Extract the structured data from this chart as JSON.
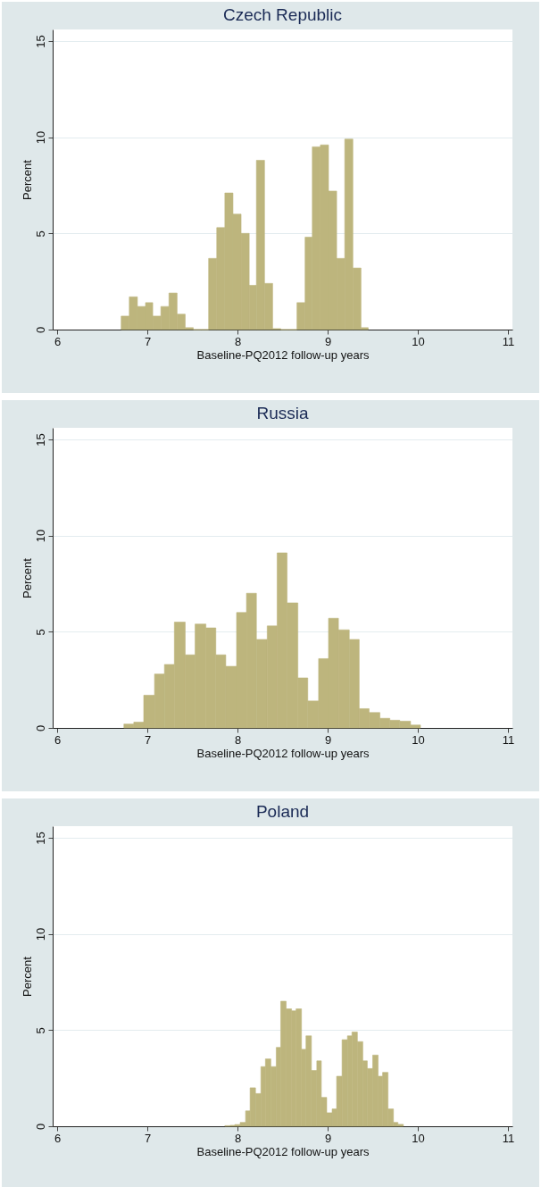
{
  "chart_data": [
    {
      "type": "histogram",
      "title": "Czech Republic",
      "xlabel": "Baseline-PQ2012 follow-up years",
      "ylabel": "Percent",
      "color": "#bdb57d",
      "bins": [
        6.71,
        6.8,
        6.89,
        6.98,
        7.06,
        7.15,
        7.24,
        7.33,
        7.42,
        7.51,
        7.6,
        7.68,
        7.77,
        7.86,
        7.95,
        8.04,
        8.13,
        8.21,
        8.3,
        8.39,
        8.48,
        8.57,
        8.66,
        8.75,
        8.83,
        8.92,
        9.01,
        9.1,
        9.19,
        9.28,
        9.37,
        9.45
      ],
      "values": [
        0.7,
        1.7,
        1.2,
        1.4,
        0.7,
        1.2,
        1.9,
        0.8,
        0.1,
        0,
        0,
        3.7,
        5.3,
        7.1,
        6.0,
        5.0,
        2.3,
        8.8,
        2.4,
        0.05,
        0,
        0,
        1.4,
        4.8,
        9.5,
        9.6,
        7.2,
        3.7,
        9.9,
        3.2,
        0.1
      ],
      "xlim": [
        5.95,
        11.05
      ],
      "xticks": [
        6,
        7,
        8,
        9,
        10,
        11
      ],
      "ylim": [
        0,
        15.6
      ],
      "yticks": [
        0,
        5,
        10,
        15
      ],
      "grid": "y"
    },
    {
      "type": "histogram",
      "title": "Russia",
      "xlabel": "Baseline-PQ2012 follow-up years",
      "ylabel": "Percent",
      "color": "#bdb57d",
      "bins": [
        6.74,
        6.85,
        6.96,
        7.08,
        7.19,
        7.3,
        7.42,
        7.53,
        7.65,
        7.76,
        7.87,
        7.99,
        8.1,
        8.21,
        8.33,
        8.44,
        8.55,
        8.67,
        8.78,
        8.9,
        9.01,
        9.12,
        9.24,
        9.35,
        9.46,
        9.58,
        9.69,
        9.8,
        9.92,
        10.03
      ],
      "values": [
        0.2,
        0.3,
        1.7,
        2.8,
        3.3,
        5.5,
        3.8,
        5.4,
        5.2,
        3.8,
        3.2,
        6.0,
        7.0,
        4.6,
        5.3,
        9.1,
        6.5,
        2.6,
        1.4,
        3.6,
        5.7,
        5.1,
        4.6,
        1.0,
        0.8,
        0.5,
        0.4,
        0.35,
        0.15
      ],
      "xlim": [
        5.95,
        11.05
      ],
      "xticks": [
        6,
        7,
        8,
        9,
        10,
        11
      ],
      "ylim": [
        0,
        15.6
      ],
      "yticks": [
        0,
        5,
        10,
        15
      ],
      "grid": "y"
    },
    {
      "type": "histogram",
      "title": "Poland",
      "xlabel": "Baseline-PQ2012 follow-up years",
      "ylabel": "Percent",
      "color": "#bdb57d",
      "bins": [
        7.86,
        7.92,
        7.97,
        8.03,
        8.09,
        8.14,
        8.2,
        8.26,
        8.31,
        8.37,
        8.43,
        8.48,
        8.54,
        8.6,
        8.65,
        8.71,
        8.76,
        8.82,
        8.88,
        8.93,
        8.99,
        9.05,
        9.1,
        9.16,
        9.22,
        9.27,
        9.33,
        9.39,
        9.44,
        9.5,
        9.56,
        9.61,
        9.67,
        9.73,
        9.78,
        9.84
      ],
      "values": [
        0.03,
        0.05,
        0.09,
        0.2,
        0.8,
        2.0,
        1.7,
        3.1,
        3.5,
        3.1,
        4.1,
        6.5,
        6.1,
        6.0,
        6.1,
        4.0,
        4.7,
        2.9,
        3.4,
        1.5,
        0.7,
        0.9,
        2.6,
        4.5,
        4.7,
        4.9,
        4.4,
        3.4,
        3.0,
        3.7,
        2.6,
        2.8,
        0.9,
        0.2,
        0.1
      ],
      "xlim": [
        5.95,
        11.05
      ],
      "xticks": [
        6,
        7,
        8,
        9,
        10,
        11
      ],
      "ylim": [
        0,
        15.6
      ],
      "yticks": [
        0,
        5,
        10,
        15
      ],
      "grid": "y"
    }
  ]
}
